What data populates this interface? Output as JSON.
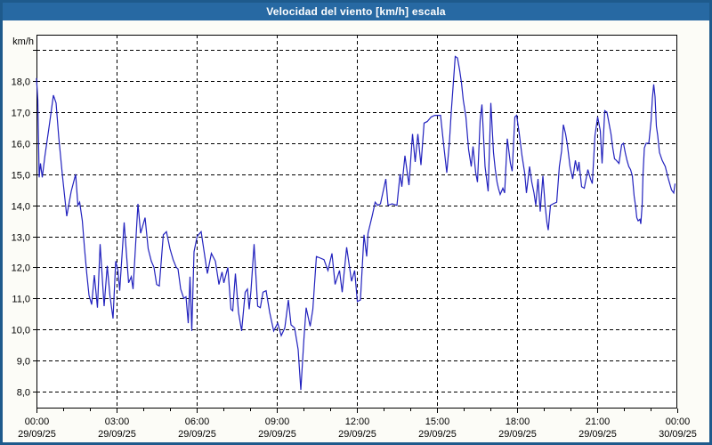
{
  "title": "Velocidad del viento [km/h] escala",
  "colors": {
    "titlebar": "#2769A3",
    "window_border": "#1E5A8C",
    "background": "#FCFCF7",
    "plot_background": "#FFFFFF",
    "line": "#2222BE",
    "grid": "#000000",
    "text": "#000000"
  },
  "chart_data": {
    "type": "line",
    "title": "Velocidad del viento [km/h] escala",
    "ylabel": "km/h",
    "xlabel": "",
    "x_unit": "minutes since 29/09/25 00:00",
    "xlim": [
      0,
      1440
    ],
    "ylim": [
      7.45,
      19.5
    ],
    "grid": true,
    "legend": false,
    "y_gridlines": [
      8,
      9,
      10,
      11,
      12,
      13,
      14,
      15,
      16,
      17,
      18,
      19
    ],
    "y_tick_labels": [
      {
        "value": 8,
        "label": "8,0"
      },
      {
        "value": 9,
        "label": "9,0"
      },
      {
        "value": 10,
        "label": "10,0"
      },
      {
        "value": 11,
        "label": "11,0"
      },
      {
        "value": 12,
        "label": "12,0"
      },
      {
        "value": 13,
        "label": "13,0"
      },
      {
        "value": 14,
        "label": "14,0"
      },
      {
        "value": 15,
        "label": "15,0"
      },
      {
        "value": 16,
        "label": "16,0"
      },
      {
        "value": 17,
        "label": "17,0"
      },
      {
        "value": 18,
        "label": "18,0"
      }
    ],
    "x_ticks": [
      {
        "minutes": 0,
        "time": "00:00",
        "date": "29/09/25"
      },
      {
        "minutes": 180,
        "time": "03:00",
        "date": "29/09/25"
      },
      {
        "minutes": 360,
        "time": "06:00",
        "date": "29/09/25"
      },
      {
        "minutes": 540,
        "time": "09:00",
        "date": "29/09/25"
      },
      {
        "minutes": 720,
        "time": "12:00",
        "date": "29/09/25"
      },
      {
        "minutes": 900,
        "time": "15:00",
        "date": "29/09/25"
      },
      {
        "minutes": 1080,
        "time": "18:00",
        "date": "29/09/25"
      },
      {
        "minutes": 1260,
        "time": "21:00",
        "date": "29/09/25"
      },
      {
        "minutes": 1440,
        "time": "00:00",
        "date": "30/09/25"
      }
    ],
    "minor_tick_minutes": 60,
    "points": [
      [
        0,
        18.1
      ],
      [
        3,
        17.4
      ],
      [
        6,
        14.9
      ],
      [
        9,
        15.35
      ],
      [
        13,
        14.9
      ],
      [
        19,
        15.6
      ],
      [
        28,
        16.5
      ],
      [
        38,
        17.55
      ],
      [
        44,
        17.3
      ],
      [
        50,
        16.2
      ],
      [
        58,
        15.0
      ],
      [
        68,
        13.65
      ],
      [
        78,
        14.45
      ],
      [
        88,
        15.0
      ],
      [
        93,
        14.0
      ],
      [
        97,
        14.1
      ],
      [
        103,
        13.5
      ],
      [
        108,
        12.6
      ],
      [
        113,
        11.8
      ],
      [
        118,
        11.1
      ],
      [
        124,
        10.8
      ],
      [
        130,
        11.75
      ],
      [
        137,
        10.7
      ],
      [
        143,
        12.75
      ],
      [
        149,
        11.4
      ],
      [
        152,
        10.75
      ],
      [
        159,
        12.05
      ],
      [
        165,
        11.1
      ],
      [
        172,
        10.35
      ],
      [
        178,
        12.2
      ],
      [
        183,
        11.9
      ],
      [
        187,
        11.25
      ],
      [
        197,
        13.45
      ],
      [
        207,
        11.5
      ],
      [
        213,
        11.7
      ],
      [
        217,
        11.3
      ],
      [
        228,
        14.05
      ],
      [
        234,
        13.1
      ],
      [
        244,
        13.6
      ],
      [
        251,
        12.6
      ],
      [
        258,
        12.2
      ],
      [
        264,
        12.0
      ],
      [
        270,
        11.45
      ],
      [
        276,
        11.4
      ],
      [
        285,
        13.05
      ],
      [
        292,
        13.15
      ],
      [
        300,
        12.6
      ],
      [
        307,
        12.25
      ],
      [
        314,
        12.0
      ],
      [
        318,
        11.95
      ],
      [
        324,
        11.3
      ],
      [
        331,
        11.0
      ],
      [
        336,
        11.05
      ],
      [
        341,
        10.2
      ],
      [
        345,
        11.7
      ],
      [
        349,
        9.95
      ],
      [
        354,
        12.5
      ],
      [
        361,
        13.0
      ],
      [
        370,
        13.15
      ],
      [
        384,
        11.8
      ],
      [
        393,
        12.45
      ],
      [
        402,
        12.2
      ],
      [
        410,
        11.45
      ],
      [
        417,
        11.85
      ],
      [
        421,
        11.5
      ],
      [
        430,
        12.0
      ],
      [
        437,
        10.65
      ],
      [
        441,
        10.6
      ],
      [
        447,
        11.8
      ],
      [
        454,
        10.55
      ],
      [
        461,
        9.95
      ],
      [
        469,
        11.2
      ],
      [
        474,
        11.3
      ],
      [
        478,
        10.65
      ],
      [
        482,
        11.25
      ],
      [
        489,
        12.75
      ],
      [
        497,
        10.75
      ],
      [
        503,
        10.7
      ],
      [
        509,
        11.2
      ],
      [
        516,
        11.25
      ],
      [
        524,
        10.55
      ],
      [
        533,
        9.95
      ],
      [
        542,
        10.2
      ],
      [
        550,
        9.8
      ],
      [
        558,
        10.05
      ],
      [
        566,
        10.95
      ],
      [
        572,
        10.15
      ],
      [
        580,
        10.05
      ],
      [
        588,
        9.35
      ],
      [
        594,
        8.05
      ],
      [
        601,
        9.7
      ],
      [
        606,
        10.7
      ],
      [
        615,
        10.1
      ],
      [
        621,
        10.65
      ],
      [
        629,
        12.35
      ],
      [
        638,
        12.3
      ],
      [
        646,
        12.25
      ],
      [
        655,
        11.9
      ],
      [
        664,
        12.45
      ],
      [
        671,
        11.45
      ],
      [
        681,
        11.9
      ],
      [
        687,
        11.2
      ],
      [
        697,
        12.65
      ],
      [
        708,
        11.55
      ],
      [
        715,
        11.9
      ],
      [
        721,
        10.9
      ],
      [
        728,
        10.95
      ],
      [
        736,
        13.05
      ],
      [
        742,
        12.35
      ],
      [
        745,
        13.1
      ],
      [
        755,
        13.7
      ],
      [
        761,
        14.1
      ],
      [
        767,
        14.0
      ],
      [
        773,
        14.05
      ],
      [
        785,
        14.85
      ],
      [
        790,
        14.0
      ],
      [
        799,
        14.05
      ],
      [
        810,
        14.0
      ],
      [
        817,
        15.0
      ],
      [
        821,
        14.6
      ],
      [
        828,
        15.6
      ],
      [
        837,
        14.65
      ],
      [
        845,
        16.3
      ],
      [
        851,
        15.4
      ],
      [
        857,
        16.3
      ],
      [
        864,
        15.3
      ],
      [
        871,
        16.65
      ],
      [
        878,
        16.7
      ],
      [
        887,
        16.85
      ],
      [
        895,
        16.9
      ],
      [
        908,
        16.9
      ],
      [
        915,
        15.95
      ],
      [
        922,
        15.05
      ],
      [
        928,
        16.05
      ],
      [
        932,
        17.0
      ],
      [
        937,
        18.0
      ],
      [
        941,
        18.8
      ],
      [
        946,
        18.75
      ],
      [
        951,
        18.35
      ],
      [
        955,
        17.95
      ],
      [
        959,
        17.4
      ],
      [
        965,
        16.85
      ],
      [
        971,
        15.8
      ],
      [
        977,
        15.25
      ],
      [
        981,
        15.9
      ],
      [
        987,
        15.05
      ],
      [
        991,
        14.75
      ],
      [
        997,
        16.75
      ],
      [
        1001,
        17.25
      ],
      [
        1008,
        15.25
      ],
      [
        1011,
        14.9
      ],
      [
        1015,
        14.45
      ],
      [
        1021,
        17.3
      ],
      [
        1027,
        15.7
      ],
      [
        1031,
        15.15
      ],
      [
        1035,
        14.75
      ],
      [
        1038,
        14.55
      ],
      [
        1042,
        14.35
      ],
      [
        1048,
        14.55
      ],
      [
        1052,
        14.4
      ],
      [
        1058,
        16.15
      ],
      [
        1065,
        15.35
      ],
      [
        1069,
        15.1
      ],
      [
        1075,
        16.85
      ],
      [
        1079,
        16.9
      ],
      [
        1085,
        16.3
      ],
      [
        1091,
        15.6
      ],
      [
        1097,
        15.05
      ],
      [
        1101,
        14.4
      ],
      [
        1108,
        15.25
      ],
      [
        1113,
        14.75
      ],
      [
        1118,
        14.4
      ],
      [
        1122,
        14.0
      ],
      [
        1127,
        14.85
      ],
      [
        1132,
        13.8
      ],
      [
        1138,
        14.95
      ],
      [
        1143,
        14.0
      ],
      [
        1147,
        13.45
      ],
      [
        1150,
        13.2
      ],
      [
        1155,
        14.0
      ],
      [
        1161,
        14.05
      ],
      [
        1169,
        14.1
      ],
      [
        1175,
        15.25
      ],
      [
        1180,
        15.75
      ],
      [
        1184,
        16.6
      ],
      [
        1189,
        16.3
      ],
      [
        1193,
        15.95
      ],
      [
        1199,
        15.25
      ],
      [
        1205,
        14.85
      ],
      [
        1211,
        15.45
      ],
      [
        1216,
        15.1
      ],
      [
        1219,
        15.4
      ],
      [
        1225,
        14.6
      ],
      [
        1231,
        14.55
      ],
      [
        1239,
        15.15
      ],
      [
        1245,
        14.85
      ],
      [
        1249,
        14.7
      ],
      [
        1255,
        16.25
      ],
      [
        1261,
        16.85
      ],
      [
        1267,
        16.4
      ],
      [
        1271,
        15.35
      ],
      [
        1277,
        17.05
      ],
      [
        1282,
        17.0
      ],
      [
        1291,
        16.3
      ],
      [
        1295,
        15.85
      ],
      [
        1299,
        15.5
      ],
      [
        1303,
        15.45
      ],
      [
        1309,
        15.35
      ],
      [
        1315,
        15.95
      ],
      [
        1319,
        16.0
      ],
      [
        1323,
        15.7
      ],
      [
        1327,
        15.45
      ],
      [
        1331,
        15.25
      ],
      [
        1335,
        15.15
      ],
      [
        1339,
        14.95
      ],
      [
        1343,
        14.3
      ],
      [
        1346,
        14.0
      ],
      [
        1349,
        13.6
      ],
      [
        1352,
        13.5
      ],
      [
        1356,
        13.55
      ],
      [
        1358,
        13.4
      ],
      [
        1361,
        14.0
      ],
      [
        1363,
        15.0
      ],
      [
        1366,
        15.85
      ],
      [
        1370,
        16.0
      ],
      [
        1376,
        16.0
      ],
      [
        1381,
        16.7
      ],
      [
        1384,
        17.45
      ],
      [
        1387,
        17.9
      ],
      [
        1390,
        17.5
      ],
      [
        1393,
        16.55
      ],
      [
        1396,
        16.25
      ],
      [
        1400,
        15.7
      ],
      [
        1406,
        15.45
      ],
      [
        1413,
        15.25
      ],
      [
        1420,
        14.85
      ],
      [
        1427,
        14.5
      ],
      [
        1432,
        14.4
      ],
      [
        1435,
        14.7
      ]
    ]
  }
}
